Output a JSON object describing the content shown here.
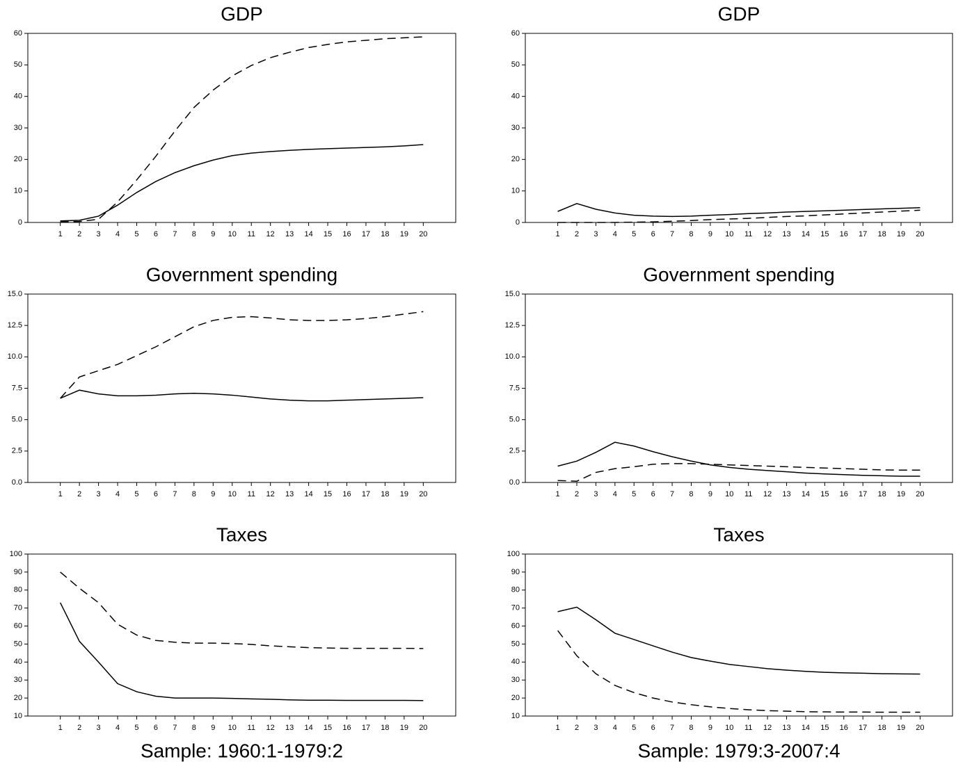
{
  "chart_data": [
    {
      "type": "line",
      "title": "GDP",
      "x": [
        1,
        2,
        3,
        4,
        5,
        6,
        7,
        8,
        9,
        10,
        11,
        12,
        13,
        14,
        15,
        16,
        17,
        18,
        19,
        20
      ],
      "xlim": [
        -0.7,
        21.7
      ],
      "xticks": [
        1,
        2,
        3,
        4,
        5,
        6,
        7,
        8,
        9,
        10,
        11,
        12,
        13,
        14,
        15,
        16,
        17,
        18,
        19,
        20
      ],
      "ylim": [
        0,
        60
      ],
      "yticks": [
        0,
        10,
        20,
        30,
        40,
        50,
        60
      ],
      "series": [
        {
          "color": "#000000",
          "style": "solid",
          "values": [
            0.5,
            0.7,
            2,
            5.5,
            9.5,
            13,
            15.8,
            18,
            19.8,
            21.2,
            22,
            22.5,
            22.9,
            23.2,
            23.4,
            23.6,
            23.8,
            24,
            24.3,
            24.7
          ]
        },
        {
          "color": "#000000",
          "style": "dashed",
          "values": [
            0.2,
            0.3,
            1,
            6.5,
            13.5,
            21,
            29,
            36.5,
            42,
            46.5,
            49.8,
            52.3,
            54,
            55.5,
            56.5,
            57.3,
            57.8,
            58.3,
            58.6,
            58.9
          ]
        }
      ]
    },
    {
      "type": "line",
      "title": "GDP",
      "x": [
        1,
        2,
        3,
        4,
        5,
        6,
        7,
        8,
        9,
        10,
        11,
        12,
        13,
        14,
        15,
        16,
        17,
        18,
        19,
        20
      ],
      "xlim": [
        -0.7,
        21.7
      ],
      "xticks": [
        1,
        2,
        3,
        4,
        5,
        6,
        7,
        8,
        9,
        10,
        11,
        12,
        13,
        14,
        15,
        16,
        17,
        18,
        19,
        20
      ],
      "ylim": [
        0,
        60
      ],
      "yticks": [
        0,
        10,
        20,
        30,
        40,
        50,
        60
      ],
      "series": [
        {
          "color": "#000000",
          "style": "solid",
          "values": [
            3.5,
            6,
            4.2,
            3,
            2.3,
            2,
            1.9,
            2,
            2.3,
            2.5,
            2.8,
            3,
            3.3,
            3.5,
            3.7,
            3.9,
            4.1,
            4.3,
            4.5,
            4.7
          ]
        },
        {
          "color": "#000000",
          "style": "dashed",
          "values": [
            0,
            0,
            0,
            0,
            0.1,
            0.2,
            0.4,
            0.6,
            0.9,
            1.1,
            1.3,
            1.6,
            1.9,
            2.1,
            2.4,
            2.7,
            3,
            3.3,
            3.6,
            3.9
          ]
        }
      ]
    },
    {
      "type": "line",
      "title": "Government spending",
      "x": [
        1,
        2,
        3,
        4,
        5,
        6,
        7,
        8,
        9,
        10,
        11,
        12,
        13,
        14,
        15,
        16,
        17,
        18,
        19,
        20
      ],
      "xlim": [
        -0.7,
        21.7
      ],
      "xticks": [
        1,
        2,
        3,
        4,
        5,
        6,
        7,
        8,
        9,
        10,
        11,
        12,
        13,
        14,
        15,
        16,
        17,
        18,
        19,
        20
      ],
      "ylim": [
        0,
        15
      ],
      "yticks": [
        {
          "value": 0,
          "label": "0.0"
        },
        {
          "value": 2.5,
          "label": "2.5"
        },
        {
          "value": 5,
          "label": "5.0"
        },
        {
          "value": 7.5,
          "label": "7.5"
        },
        {
          "value": 10,
          "label": "10.0"
        },
        {
          "value": 12.5,
          "label": "12.5"
        },
        {
          "value": 15,
          "label": "15.0"
        }
      ],
      "series": [
        {
          "color": "#000000",
          "style": "solid",
          "values": [
            6.7,
            7.35,
            7.05,
            6.9,
            6.9,
            6.95,
            7.05,
            7.1,
            7.05,
            6.95,
            6.8,
            6.65,
            6.55,
            6.5,
            6.5,
            6.55,
            6.6,
            6.65,
            6.7,
            6.75
          ]
        },
        {
          "color": "#000000",
          "style": "dashed",
          "values": [
            6.7,
            8.4,
            8.9,
            9.4,
            10.1,
            10.8,
            11.6,
            12.4,
            12.9,
            13.15,
            13.2,
            13.1,
            12.95,
            12.9,
            12.9,
            12.95,
            13.05,
            13.2,
            13.4,
            13.6
          ]
        }
      ]
    },
    {
      "type": "line",
      "title": "Government spending",
      "x": [
        1,
        2,
        3,
        4,
        5,
        6,
        7,
        8,
        9,
        10,
        11,
        12,
        13,
        14,
        15,
        16,
        17,
        18,
        19,
        20
      ],
      "xlim": [
        -0.7,
        21.7
      ],
      "xticks": [
        1,
        2,
        3,
        4,
        5,
        6,
        7,
        8,
        9,
        10,
        11,
        12,
        13,
        14,
        15,
        16,
        17,
        18,
        19,
        20
      ],
      "ylim": [
        0,
        15
      ],
      "yticks": [
        {
          "value": 0,
          "label": "0.0"
        },
        {
          "value": 2.5,
          "label": "2.5"
        },
        {
          "value": 5,
          "label": "5.0"
        },
        {
          "value": 7.5,
          "label": "7.5"
        },
        {
          "value": 10,
          "label": "10.0"
        },
        {
          "value": 12.5,
          "label": "12.5"
        },
        {
          "value": 15,
          "label": "15.0"
        }
      ],
      "series": [
        {
          "color": "#000000",
          "style": "solid",
          "values": [
            1.3,
            1.7,
            2.4,
            3.2,
            2.9,
            2.45,
            2.05,
            1.7,
            1.4,
            1.2,
            1.05,
            0.95,
            0.85,
            0.75,
            0.68,
            0.62,
            0.57,
            0.53,
            0.5,
            0.5
          ]
        },
        {
          "color": "#000000",
          "style": "dashed",
          "values": [
            0.15,
            0.1,
            0.8,
            1.1,
            1.25,
            1.45,
            1.5,
            1.5,
            1.45,
            1.4,
            1.35,
            1.3,
            1.25,
            1.2,
            1.15,
            1.1,
            1.05,
            1.0,
            0.98,
            0.98
          ]
        }
      ]
    },
    {
      "type": "line",
      "title": "Taxes",
      "xlabel": "Sample: 1960:1-1979:2",
      "x": [
        1,
        2,
        3,
        4,
        5,
        6,
        7,
        8,
        9,
        10,
        11,
        12,
        13,
        14,
        15,
        16,
        17,
        18,
        19,
        20
      ],
      "xlim": [
        -0.7,
        21.7
      ],
      "xticks": [
        1,
        2,
        3,
        4,
        5,
        6,
        7,
        8,
        9,
        10,
        11,
        12,
        13,
        14,
        15,
        16,
        17,
        18,
        19,
        20
      ],
      "ylim": [
        10,
        100
      ],
      "yticks": [
        10,
        20,
        30,
        40,
        50,
        60,
        70,
        80,
        90,
        100
      ],
      "series": [
        {
          "color": "#000000",
          "style": "solid",
          "values": [
            73,
            51.5,
            40,
            28,
            23.5,
            21,
            20,
            20,
            20,
            19.8,
            19.5,
            19.3,
            19,
            18.8,
            18.8,
            18.7,
            18.7,
            18.7,
            18.7,
            18.6
          ]
        },
        {
          "color": "#000000",
          "style": "dashed",
          "values": [
            90,
            81,
            73,
            61,
            55,
            52,
            51,
            50.5,
            50.5,
            50.3,
            49.8,
            49,
            48.5,
            48,
            47.8,
            47.6,
            47.6,
            47.6,
            47.6,
            47.5
          ]
        }
      ]
    },
    {
      "type": "line",
      "title": "Taxes",
      "xlabel": "Sample: 1979:3-2007:4",
      "x": [
        1,
        2,
        3,
        4,
        5,
        6,
        7,
        8,
        9,
        10,
        11,
        12,
        13,
        14,
        15,
        16,
        17,
        18,
        19,
        20
      ],
      "xlim": [
        -0.7,
        21.7
      ],
      "xticks": [
        1,
        2,
        3,
        4,
        5,
        6,
        7,
        8,
        9,
        10,
        11,
        12,
        13,
        14,
        15,
        16,
        17,
        18,
        19,
        20
      ],
      "ylim": [
        10,
        100
      ],
      "yticks": [
        10,
        20,
        30,
        40,
        50,
        60,
        70,
        80,
        90,
        100
      ],
      "series": [
        {
          "color": "#000000",
          "style": "solid",
          "values": [
            68,
            70.5,
            63.5,
            56,
            52.5,
            49,
            45.5,
            42.5,
            40.5,
            38.7,
            37.5,
            36.3,
            35.5,
            34.8,
            34.3,
            34,
            33.8,
            33.5,
            33.4,
            33.3
          ]
        },
        {
          "color": "#000000",
          "style": "dashed",
          "values": [
            57.5,
            43.5,
            33.5,
            27,
            23,
            20,
            17.8,
            16.3,
            15.1,
            14.2,
            13.5,
            13,
            12.7,
            12.4,
            12.3,
            12.2,
            12.2,
            12.1,
            12.1,
            12.1
          ]
        }
      ]
    }
  ]
}
